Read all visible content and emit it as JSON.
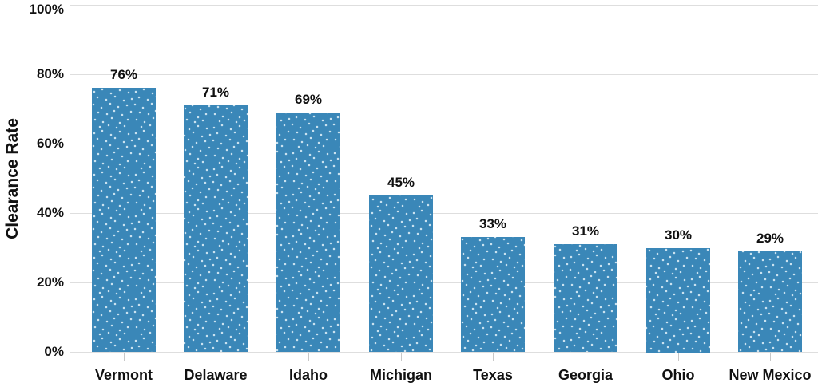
{
  "chart_data": {
    "type": "bar",
    "categories": [
      "Vermont",
      "Delaware",
      "Idaho",
      "Michigan",
      "Texas",
      "Georgia",
      "Ohio",
      "New Mexico"
    ],
    "values": [
      76,
      71,
      69,
      45,
      33,
      31,
      30,
      29
    ],
    "value_labels": [
      "76%",
      "71%",
      "69%",
      "45%",
      "33%",
      "31%",
      "30%",
      "29%"
    ],
    "title": "",
    "xlabel": "",
    "ylabel": "Clearance Rate",
    "ylim": [
      0,
      100
    ],
    "yticks": [
      0,
      20,
      40,
      60,
      80,
      100
    ],
    "ytick_labels": [
      "0%",
      "20%",
      "40%",
      "60%",
      "80%",
      "100%"
    ],
    "grid": "horizontal-only",
    "legend": "none",
    "bar_color": "#3a87b8",
    "bar_texture": "scattered-white-dots",
    "dot_color": "#cbe3f0",
    "gridline_color": "#dedede",
    "tick_mark_color": "#c8c8c8",
    "text_color": "#111111"
  }
}
